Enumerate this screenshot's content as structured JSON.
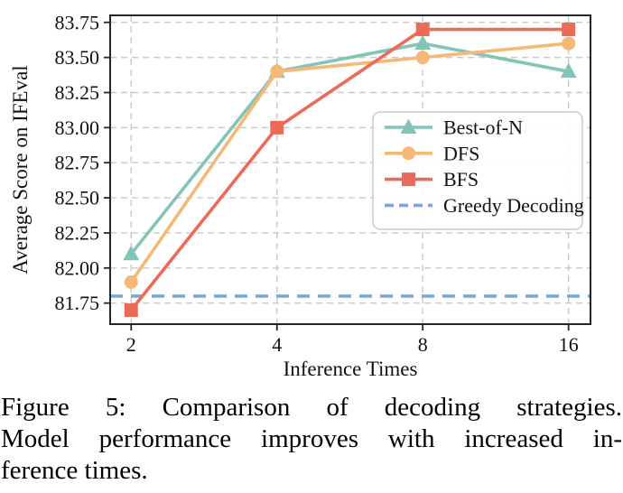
{
  "chart_data": {
    "type": "line",
    "title": "",
    "xlabel": "Inference Times",
    "ylabel": "Average Score on IFEval",
    "x": [
      2,
      4,
      8,
      16
    ],
    "x_scale": "log2",
    "x_ticks": [
      "2",
      "4",
      "8",
      "16"
    ],
    "y_ticks": [
      "81.75",
      "82.00",
      "82.25",
      "82.50",
      "82.75",
      "83.00",
      "83.25",
      "83.50",
      "83.75"
    ],
    "xlim": [
      1.81,
      17.76
    ],
    "ylim": [
      81.6,
      83.8
    ],
    "grid": true,
    "grid_color": "#c9c9c9",
    "axis_color": "#262626",
    "text_color": "#111111",
    "legend_position": "center right",
    "series": [
      {
        "name": "Best-of-N",
        "marker": "triangle",
        "line_style": "solid",
        "color": "#84c3b8",
        "values": [
          82.1,
          83.4,
          83.6,
          83.4
        ]
      },
      {
        "name": "DFS",
        "marker": "circle",
        "line_style": "solid",
        "color": "#f6b877",
        "values": [
          81.9,
          83.4,
          83.5,
          83.6
        ]
      },
      {
        "name": "BFS",
        "marker": "square",
        "line_style": "solid",
        "color": "#eb6b58",
        "values": [
          81.7,
          83.0,
          83.7,
          83.7
        ]
      },
      {
        "name": "Greedy Decoding",
        "marker": "none",
        "line_style": "dashed",
        "color": "#7ea7d1",
        "hline": 81.8
      }
    ]
  },
  "caption": {
    "lines": [
      "Figure 5:  Comparison of decoding strategies.",
      "Model performance improves with increased in-",
      "ference times."
    ]
  }
}
